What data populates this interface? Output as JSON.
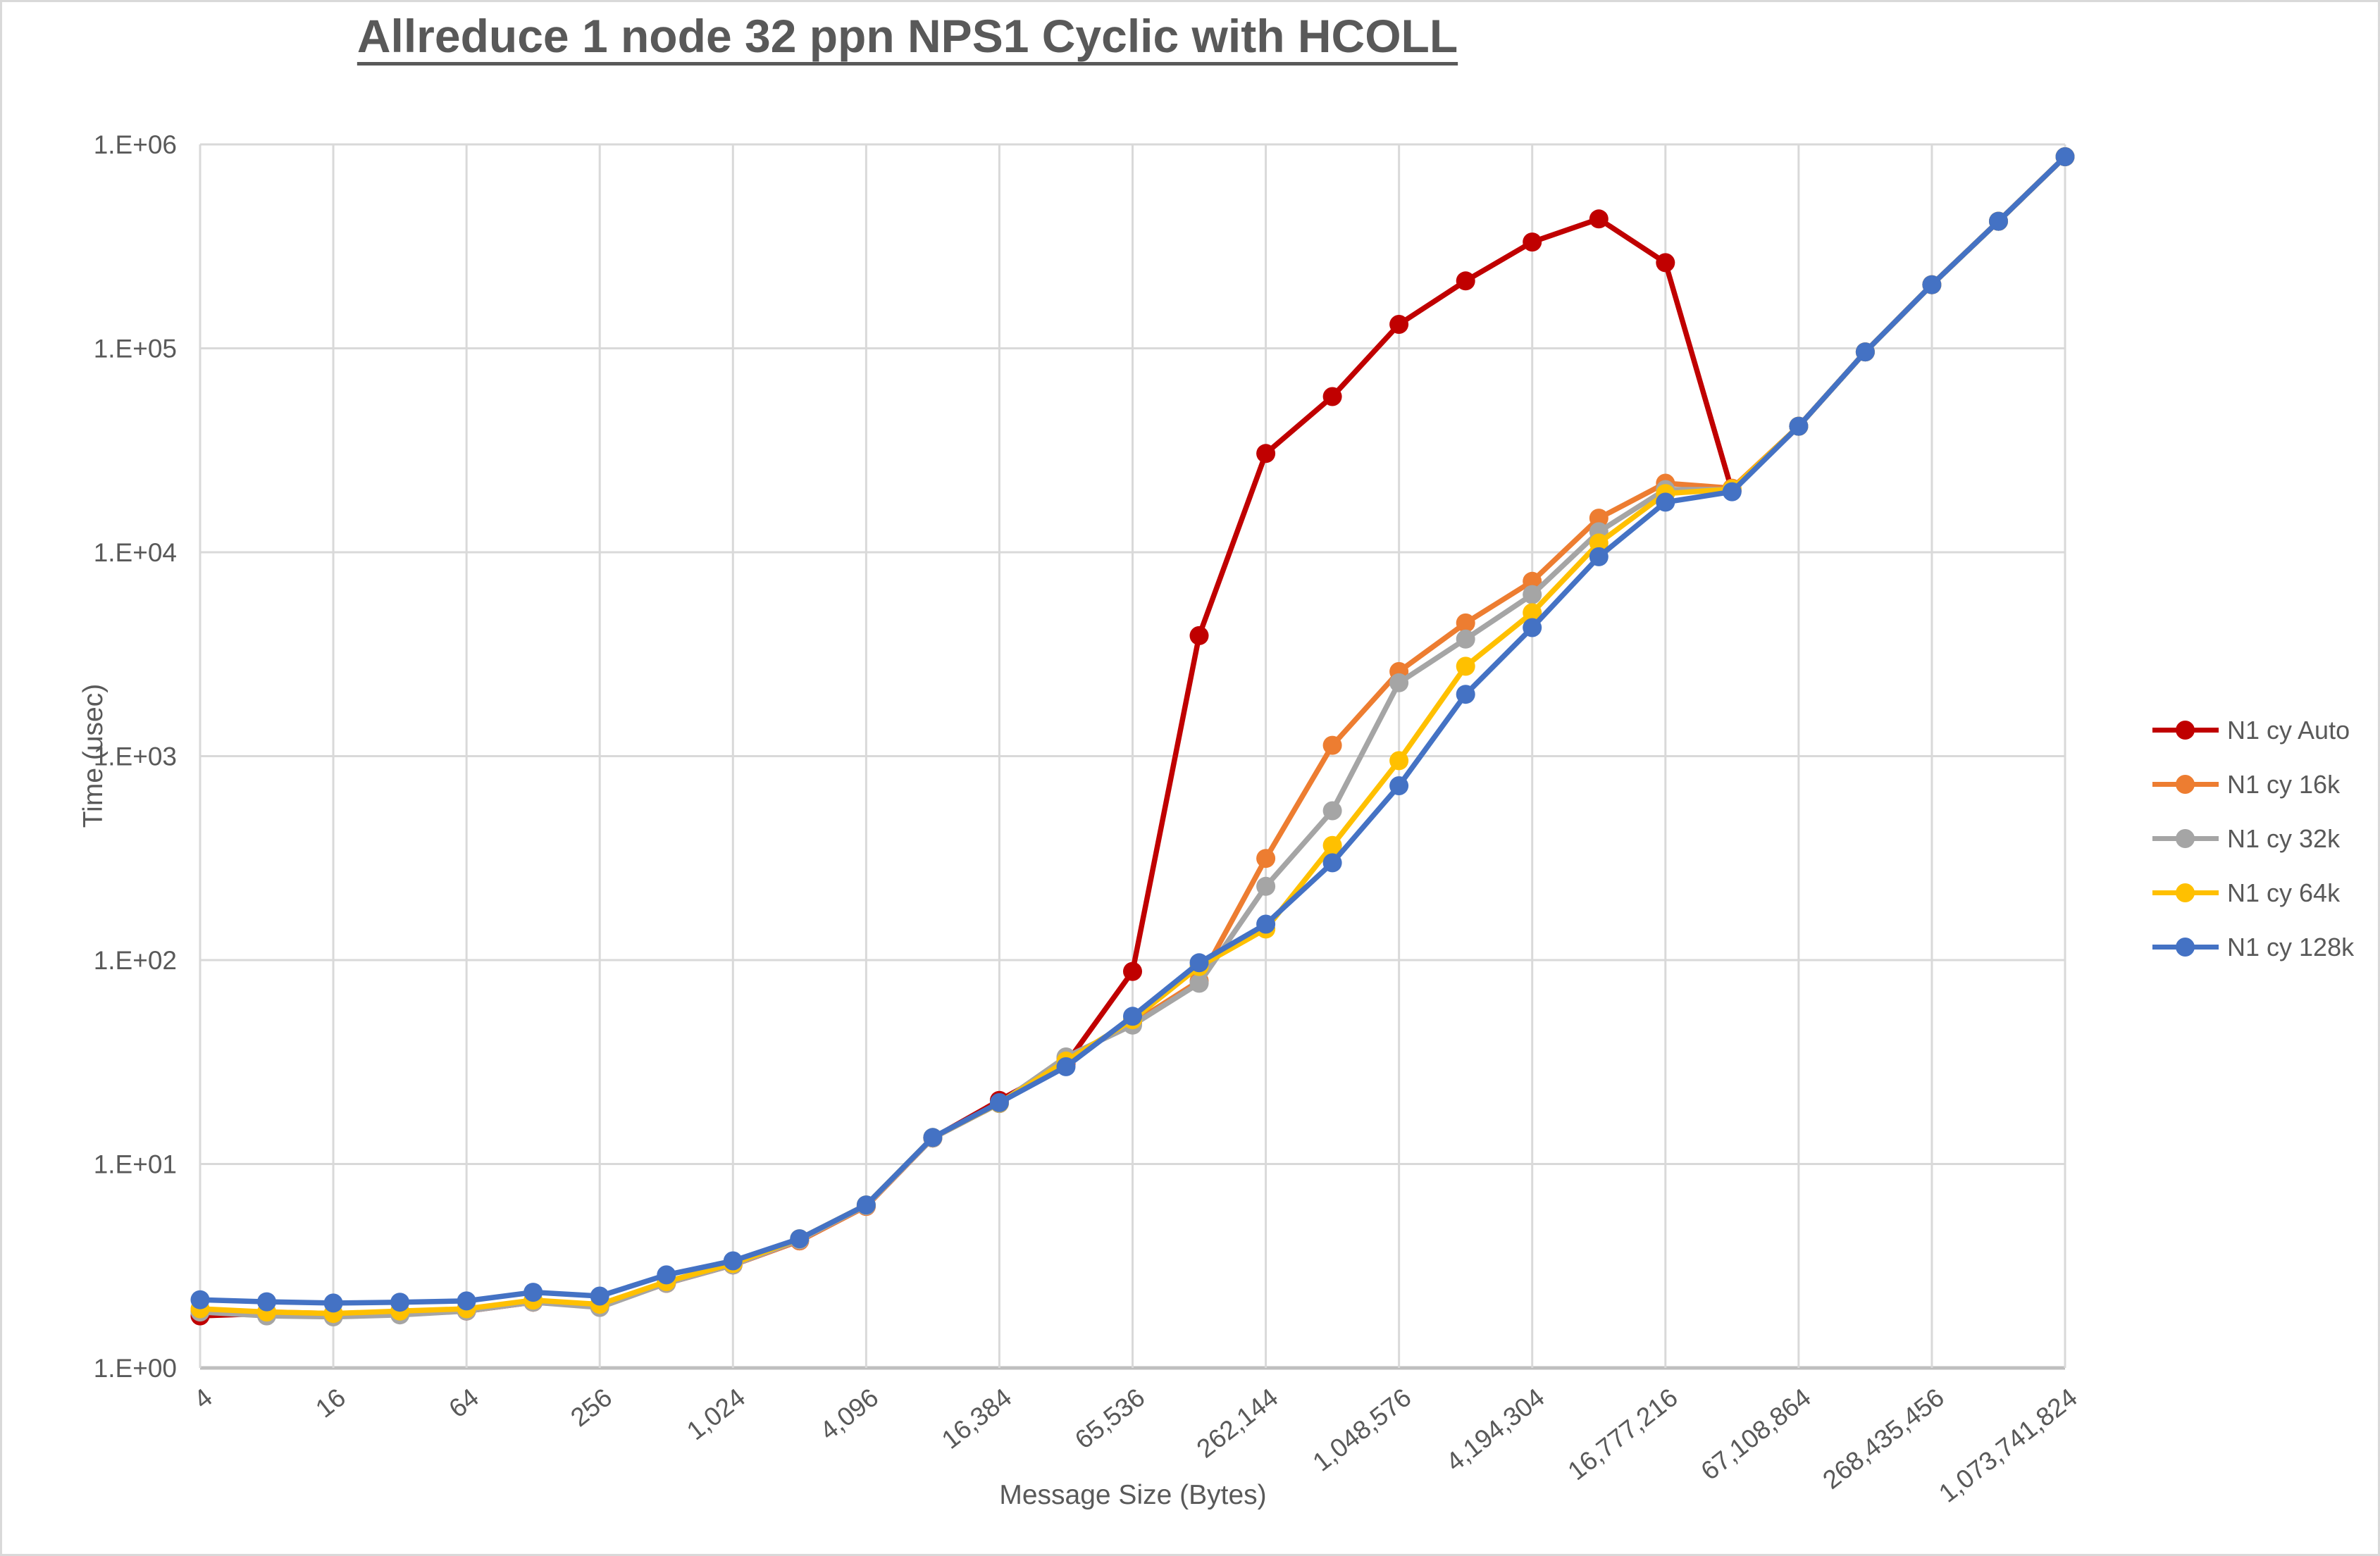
{
  "title": "Allreduce 1 node 32 ppn NPS1 Cyclic with HCOLL",
  "chart_data": {
    "type": "line",
    "title": "Allreduce 1 node 32 ppn NPS1 Cyclic with HCOLL",
    "xlabel": "Message Size (Bytes)",
    "ylabel": "Time (usec)",
    "x_scale": "log2 categories (powers of 2, 4 B to 1 GB)",
    "y_scale": "log10",
    "ylim": [
      1,
      1000000
    ],
    "grid": true,
    "legend_position": "right",
    "y_tick_labels": [
      "1.E+00",
      "1.E+01",
      "1.E+02",
      "1.E+03",
      "1.E+04",
      "1.E+05",
      "1.E+06"
    ],
    "x_tick_labels": [
      "4",
      "16",
      "64",
      "256",
      "1,024",
      "4,096",
      "16,384",
      "65,536",
      "262,144",
      "1,048,576",
      "4,194,304",
      "16,777,216",
      "67,108,864",
      "268,435,456",
      "1,073,741,824"
    ],
    "categories": [
      4,
      8,
      16,
      32,
      64,
      128,
      256,
      512,
      1024,
      2048,
      4096,
      8192,
      16384,
      32768,
      65536,
      131072,
      262144,
      524288,
      1048576,
      2097152,
      4194304,
      8388608,
      16777216,
      33554432,
      67108864,
      134217728,
      268435456,
      536870912,
      1073741824
    ],
    "series": [
      {
        "name": "N1 cy Auto",
        "color": "#C00000",
        "values": [
          1.8,
          1.85,
          1.8,
          1.85,
          1.9,
          2.1,
          2.0,
          2.6,
          3.2,
          4.2,
          6.2,
          13.4,
          20.5,
          31,
          88,
          3900,
          30500,
          58000,
          131000,
          214000,
          332000,
          431000,
          263000,
          20000,
          41500,
          96000,
          205000,
          420000,
          870000
        ]
      },
      {
        "name": "N1 cy 16k",
        "color": "#ED7D31",
        "values": [
          1.9,
          1.88,
          1.85,
          1.88,
          1.95,
          2.1,
          2.0,
          2.6,
          3.2,
          4.2,
          6.2,
          13.4,
          19.8,
          33,
          49,
          79,
          315,
          1130,
          2600,
          4500,
          7200,
          14700,
          21800,
          20600,
          41500,
          96000,
          205000,
          420000,
          870000
        ]
      },
      {
        "name": "N1 cy 32k",
        "color": "#A5A5A5",
        "values": [
          1.88,
          1.8,
          1.78,
          1.82,
          1.9,
          2.1,
          1.98,
          2.6,
          3.2,
          4.25,
          6.25,
          13.4,
          19.8,
          33.5,
          48,
          77,
          230,
          540,
          2290,
          3750,
          6200,
          12600,
          20300,
          20300,
          41500,
          96000,
          205000,
          420000,
          870000
        ]
      },
      {
        "name": "N1 cy 64k",
        "color": "#FFC000",
        "values": [
          1.95,
          1.88,
          1.85,
          1.9,
          1.95,
          2.15,
          2.05,
          2.65,
          3.25,
          4.3,
          6.3,
          13.5,
          19.9,
          32,
          51,
          93,
          142,
          365,
          950,
          2760,
          5050,
          11100,
          19400,
          20400,
          41500,
          96000,
          205000,
          420000,
          870000
        ]
      },
      {
        "name": "N1 cy 128k",
        "color": "#4472C4",
        "values": [
          2.16,
          2.11,
          2.08,
          2.1,
          2.13,
          2.35,
          2.25,
          2.86,
          3.35,
          4.3,
          6.3,
          13.5,
          20,
          30,
          53,
          97,
          150,
          300,
          716,
          2010,
          4270,
          9500,
          17600,
          19800,
          41500,
          96000,
          205000,
          420000,
          870000
        ]
      }
    ],
    "colors": {
      "text": "#595959",
      "gridline": "#d9d9d9",
      "axis_line": "#bfbfbf"
    }
  }
}
